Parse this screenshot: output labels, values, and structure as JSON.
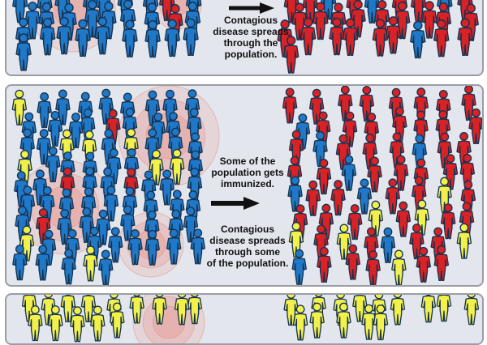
{
  "colors": {
    "healthy": "#1f78c8",
    "sick": "#d82226",
    "immunized": "#f2f04a",
    "outline": "#16324f",
    "halo": "#e98a80",
    "panel_bg": "#e3e6ed",
    "panel_border": "#9a9da3"
  },
  "panels": [
    {
      "caption_lines": [
        "Contagious",
        "disease spreads",
        "through the",
        "population."
      ],
      "before": {
        "healthy": 26,
        "immunized": 0,
        "sick": 2
      },
      "after": {
        "healthy": 4,
        "immunized": 0,
        "sick": 24
      }
    },
    {
      "caption_top": [
        "Some of the",
        "population gets",
        "immunized."
      ],
      "caption_bottom": [
        "Contagious",
        "disease spreads",
        "through some",
        "of the population."
      ],
      "before": {
        "healthy": 64,
        "immunized": 9,
        "sick": 4
      },
      "after": {
        "healthy": 8,
        "immunized": 7,
        "sick": 48
      }
    },
    {
      "caption_lines": [],
      "before": {
        "healthy": 0,
        "immunized": 14,
        "sick": 0
      },
      "after": {
        "healthy": 0,
        "immunized": 14,
        "sick": 0
      }
    }
  ]
}
